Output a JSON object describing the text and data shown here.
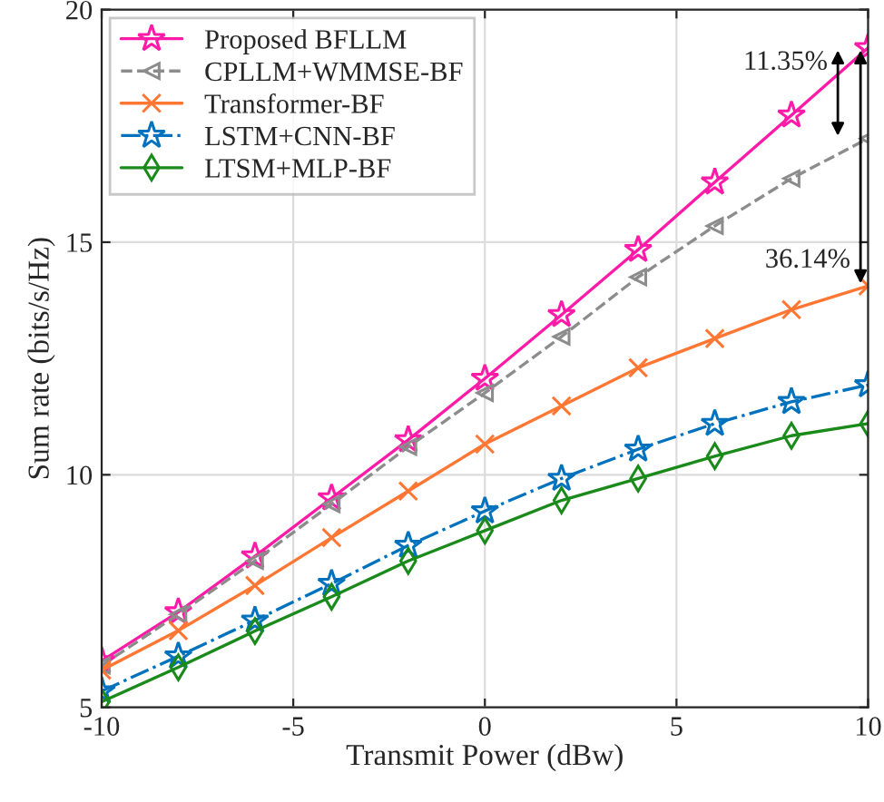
{
  "chart_data": {
    "type": "line",
    "xlabel": "Transmit Power (dBw)",
    "ylabel": "Sum rate (bits/s/Hz)",
    "x": [
      -10,
      -8,
      -6,
      -4,
      -2,
      0,
      2,
      4,
      6,
      8,
      10
    ],
    "series": [
      {
        "name": "Proposed BFLLM",
        "color": "#ff1aa8",
        "marker": "star",
        "line_style": "solid",
        "values": [
          6.0,
          7.05,
          8.25,
          9.5,
          10.75,
          12.07,
          13.44,
          14.84,
          16.29,
          17.73,
          19.18
        ]
      },
      {
        "name": "CPLLM+WMMSE-BF",
        "color": "#8c8c8c",
        "marker": "triangle",
        "line_style": "dashed",
        "values": [
          5.9,
          7.0,
          8.15,
          9.37,
          10.6,
          11.76,
          12.97,
          14.25,
          15.35,
          16.37,
          17.23
        ]
      },
      {
        "name": "Transformer-BF",
        "color": "#ff7733",
        "marker": "cross",
        "line_style": "solid",
        "values": [
          5.8,
          6.65,
          7.62,
          8.65,
          9.65,
          10.66,
          11.48,
          12.3,
          12.93,
          13.55,
          14.06
        ]
      },
      {
        "name": "LSTM+CNN-BF",
        "color": "#0072bd",
        "marker": "star",
        "line_style": "dashdot",
        "values": [
          5.35,
          6.1,
          6.87,
          7.66,
          8.48,
          9.22,
          9.92,
          10.55,
          11.1,
          11.57,
          11.93
        ]
      },
      {
        "name": "LTSM+MLP-BF",
        "color": "#1a8a1a",
        "marker": "diamond",
        "line_style": "solid",
        "values": [
          5.12,
          5.86,
          6.64,
          7.38,
          8.15,
          8.8,
          9.45,
          9.92,
          10.4,
          10.84,
          11.1
        ]
      }
    ],
    "annotations": [
      {
        "text": "11.35%",
        "x": 10,
        "y": 17.23
      },
      {
        "text": "36.14%",
        "x": 10,
        "y": 14.06
      }
    ],
    "xlim": [
      -10,
      10
    ],
    "ylim": [
      5,
      20
    ],
    "xticks": [
      -10,
      -5,
      0,
      5,
      10
    ],
    "yticks": [
      5,
      10,
      15,
      20
    ],
    "grid": true,
    "legend": "top left"
  }
}
